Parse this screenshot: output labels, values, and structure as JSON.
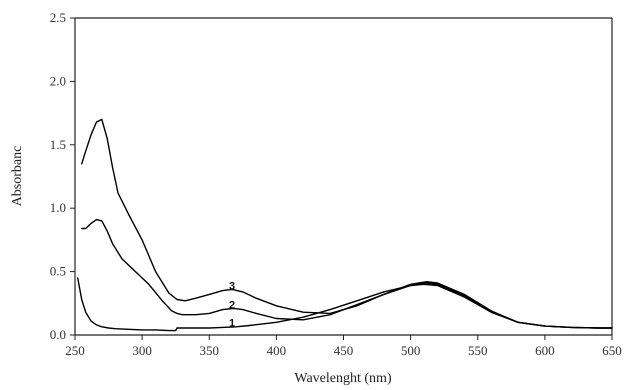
{
  "chart_data": {
    "type": "line",
    "title": "",
    "xlabel": "Wavelenght (nm)",
    "ylabel": "Absorbanc",
    "xlim": [
      250,
      650
    ],
    "ylim": [
      0.0,
      2.5
    ],
    "x_ticks": [
      "250",
      "300",
      "350",
      "400",
      "450",
      "500",
      "550",
      "600",
      "650"
    ],
    "y_ticks": [
      "0.0",
      "0.5",
      "1.0",
      "1.5",
      "2.0",
      "2.5"
    ],
    "grid": false,
    "legend": "none",
    "series": [
      {
        "name": "1",
        "color": "#000000",
        "x": [
          252,
          255,
          258,
          262,
          266,
          270,
          275,
          280,
          290,
          300,
          310,
          320,
          325,
          326,
          330,
          340,
          350,
          360,
          370,
          380,
          400,
          420,
          440,
          460,
          480,
          500,
          510,
          520,
          540,
          560,
          580,
          600,
          620,
          640,
          650
        ],
        "y": [
          0.45,
          0.28,
          0.18,
          0.11,
          0.08,
          0.065,
          0.055,
          0.05,
          0.045,
          0.04,
          0.04,
          0.035,
          0.035,
          0.055,
          0.055,
          0.055,
          0.055,
          0.06,
          0.065,
          0.075,
          0.1,
          0.14,
          0.2,
          0.27,
          0.34,
          0.39,
          0.4,
          0.39,
          0.3,
          0.18,
          0.1,
          0.07,
          0.06,
          0.055,
          0.055
        ]
      },
      {
        "name": "2",
        "color": "#000000",
        "x": [
          255,
          258,
          262,
          266,
          270,
          274,
          278,
          285,
          295,
          305,
          315,
          322,
          326,
          330,
          340,
          350,
          360,
          368,
          375,
          385,
          400,
          420,
          440,
          460,
          480,
          500,
          512,
          520,
          540,
          560,
          580,
          600,
          620,
          640,
          650
        ],
        "y": [
          0.84,
          0.84,
          0.88,
          0.91,
          0.9,
          0.82,
          0.72,
          0.6,
          0.5,
          0.4,
          0.27,
          0.19,
          0.17,
          0.16,
          0.16,
          0.17,
          0.2,
          0.21,
          0.2,
          0.17,
          0.13,
          0.12,
          0.16,
          0.24,
          0.32,
          0.39,
          0.41,
          0.4,
          0.31,
          0.18,
          0.1,
          0.07,
          0.06,
          0.055,
          0.055
        ]
      },
      {
        "name": "3",
        "color": "#000000",
        "x": [
          255,
          258,
          262,
          266,
          270,
          274,
          278,
          282,
          290,
          300,
          310,
          320,
          326,
          332,
          340,
          350,
          360,
          367,
          375,
          385,
          400,
          420,
          440,
          460,
          480,
          500,
          512,
          520,
          540,
          560,
          580,
          600,
          620,
          640,
          650
        ],
        "y": [
          1.35,
          1.45,
          1.58,
          1.68,
          1.7,
          1.55,
          1.32,
          1.12,
          0.95,
          0.75,
          0.5,
          0.33,
          0.28,
          0.27,
          0.29,
          0.32,
          0.35,
          0.36,
          0.34,
          0.29,
          0.23,
          0.18,
          0.17,
          0.23,
          0.32,
          0.4,
          0.42,
          0.41,
          0.32,
          0.19,
          0.1,
          0.07,
          0.06,
          0.055,
          0.055
        ]
      }
    ],
    "annotations": [
      {
        "text": "1",
        "x": 367,
        "y": 0.1
      },
      {
        "text": "2",
        "x": 367,
        "y": 0.24
      },
      {
        "text": "3",
        "x": 367,
        "y": 0.39
      }
    ]
  }
}
